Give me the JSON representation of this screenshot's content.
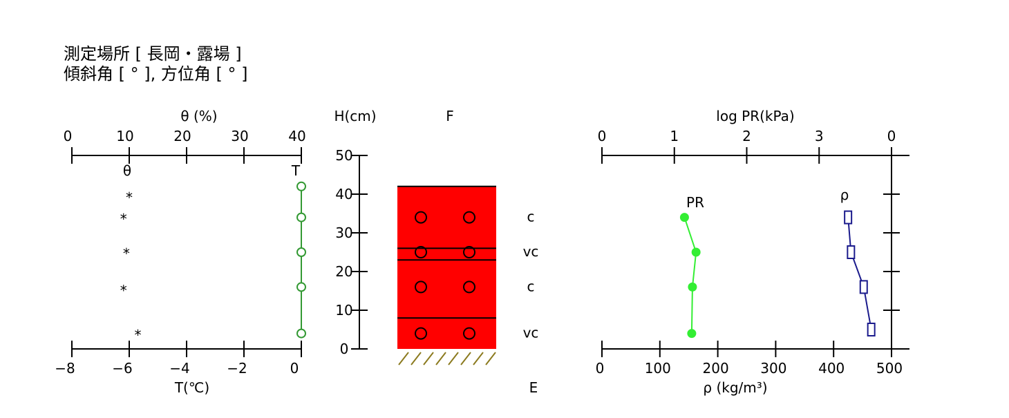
{
  "header": {
    "line1": "測定場所 [ 長岡・露場 ]",
    "line2": "傾斜角 [ ° ], 方位角 [ ° ]"
  },
  "colors": {
    "soil_layer": "#ff0000",
    "temperature": "#339933",
    "pr": "#33ee33",
    "density": "#1a1a8c",
    "hatch": "#8b7a1e"
  },
  "chart_data": [
    {
      "type": "scatter",
      "panel": "moisture-temperature",
      "y_axis": {
        "label": "H(cm)",
        "ticks": [
          "0",
          "10",
          "20",
          "30",
          "40",
          "50"
        ],
        "ylim": [
          0,
          50
        ]
      },
      "top_axis": {
        "label": "θ (%)",
        "ticks": [
          "0",
          "10",
          "20",
          "30",
          "40"
        ],
        "xlim": [
          0,
          40
        ]
      },
      "bottom_axis": {
        "label": "T(℃)",
        "ticks": [
          "−8",
          "−6",
          "−4",
          "−2",
          "0"
        ],
        "xlim": [
          -8,
          0
        ]
      },
      "series": [
        {
          "name": "θ",
          "marker": "*",
          "points": [
            [
              10,
              40
            ],
            [
              9,
              34.5
            ],
            [
              9.5,
              25.5
            ],
            [
              9,
              16
            ],
            [
              11.5,
              4.5
            ]
          ]
        },
        {
          "name": "T",
          "marker": "o",
          "points": [
            [
              0,
              42
            ],
            [
              0,
              34
            ],
            [
              0,
              25
            ],
            [
              0,
              16
            ],
            [
              0,
              4
            ]
          ]
        }
      ]
    },
    {
      "type": "table",
      "panel": "snow-profile",
      "top_label": "F",
      "bottom_label": "E",
      "snow_height": 42,
      "layer_boundaries": [
        26,
        23,
        8
      ],
      "markers": [
        34,
        25,
        16,
        4
      ],
      "grain_labels": [
        {
          "text": "c",
          "h": 34
        },
        {
          "text": "vc",
          "h": 25
        },
        {
          "text": "c",
          "h": 16
        },
        {
          "text": "vc",
          "h": 4
        }
      ]
    },
    {
      "type": "line",
      "panel": "pr-density",
      "top_axis": {
        "label": "log PR(kPa)",
        "ticks": [
          "0",
          "1",
          "2",
          "3",
          "0"
        ],
        "xlim": [
          0,
          4
        ]
      },
      "bottom_axis": {
        "label": "ρ (kg/m³)",
        "ticks": [
          "0",
          "100",
          "200",
          "300",
          "400",
          "500"
        ],
        "xlim": [
          0,
          500
        ]
      },
      "series": [
        {
          "name": "PR",
          "points": [
            [
              1.14,
              34
            ],
            [
              1.3,
              25
            ],
            [
              1.25,
              16
            ],
            [
              1.24,
              4
            ]
          ]
        },
        {
          "name": "ρ",
          "points": [
            [
              425,
              34
            ],
            [
              430,
              25
            ],
            [
              452,
              16
            ],
            [
              465,
              5
            ]
          ]
        }
      ]
    }
  ]
}
